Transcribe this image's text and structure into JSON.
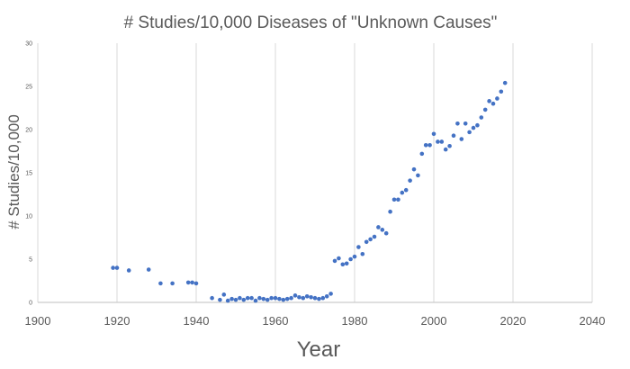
{
  "chart_data": {
    "type": "scatter",
    "title": "# Studies/10,000 Diseases of \"Unknown Causes\"",
    "xlabel": "Year",
    "ylabel": "# Studies/10,000",
    "xlim": [
      1900,
      2040
    ],
    "ylim": [
      0,
      30
    ],
    "x_ticks": [
      1900,
      1920,
      1940,
      1960,
      1980,
      2000,
      2020,
      2040
    ],
    "y_ticks": [
      0,
      5,
      10,
      15,
      20,
      25,
      30
    ],
    "grid": "vertical",
    "legend": "none",
    "marker_color": "#4472c4",
    "series": [
      {
        "points": [
          [
            1919,
            4.0
          ],
          [
            1920,
            4.0
          ],
          [
            1923,
            3.7
          ],
          [
            1928,
            3.8
          ],
          [
            1931,
            2.2
          ],
          [
            1934,
            2.2
          ],
          [
            1938,
            2.3
          ],
          [
            1939,
            2.3
          ],
          [
            1940,
            2.2
          ],
          [
            1944,
            0.5
          ],
          [
            1946,
            0.3
          ],
          [
            1947,
            0.9
          ],
          [
            1948,
            0.2
          ],
          [
            1949,
            0.4
          ],
          [
            1950,
            0.3
          ],
          [
            1951,
            0.5
          ],
          [
            1952,
            0.3
          ],
          [
            1953,
            0.5
          ],
          [
            1954,
            0.5
          ],
          [
            1955,
            0.2
          ],
          [
            1956,
            0.5
          ],
          [
            1957,
            0.4
          ],
          [
            1958,
            0.3
          ],
          [
            1959,
            0.5
          ],
          [
            1960,
            0.5
          ],
          [
            1961,
            0.4
          ],
          [
            1962,
            0.3
          ],
          [
            1963,
            0.4
          ],
          [
            1964,
            0.5
          ],
          [
            1965,
            0.8
          ],
          [
            1966,
            0.6
          ],
          [
            1967,
            0.5
          ],
          [
            1968,
            0.7
          ],
          [
            1969,
            0.6
          ],
          [
            1970,
            0.5
          ],
          [
            1971,
            0.4
          ],
          [
            1972,
            0.5
          ],
          [
            1973,
            0.7
          ],
          [
            1974,
            1.0
          ],
          [
            1975,
            4.8
          ],
          [
            1976,
            5.1
          ],
          [
            1977,
            4.4
          ],
          [
            1978,
            4.5
          ],
          [
            1979,
            5.0
          ],
          [
            1980,
            5.3
          ],
          [
            1981,
            6.4
          ],
          [
            1982,
            5.6
          ],
          [
            1983,
            7.0
          ],
          [
            1984,
            7.3
          ],
          [
            1985,
            7.6
          ],
          [
            1986,
            8.7
          ],
          [
            1987,
            8.4
          ],
          [
            1988,
            8.0
          ],
          [
            1989,
            10.5
          ],
          [
            1990,
            11.9
          ],
          [
            1991,
            11.9
          ],
          [
            1992,
            12.7
          ],
          [
            1993,
            13.0
          ],
          [
            1994,
            14.1
          ],
          [
            1995,
            15.4
          ],
          [
            1996,
            14.7
          ],
          [
            1997,
            17.2
          ],
          [
            1998,
            18.2
          ],
          [
            1999,
            18.2
          ],
          [
            2000,
            19.5
          ],
          [
            2001,
            18.6
          ],
          [
            2002,
            18.6
          ],
          [
            2003,
            17.7
          ],
          [
            2004,
            18.1
          ],
          [
            2005,
            19.3
          ],
          [
            2006,
            20.7
          ],
          [
            2007,
            18.9
          ],
          [
            2008,
            20.7
          ],
          [
            2009,
            19.7
          ],
          [
            2010,
            20.2
          ],
          [
            2011,
            20.5
          ],
          [
            2012,
            21.4
          ],
          [
            2013,
            22.3
          ],
          [
            2014,
            23.3
          ],
          [
            2015,
            23.0
          ],
          [
            2016,
            23.6
          ],
          [
            2017,
            24.4
          ],
          [
            2018,
            25.4
          ]
        ]
      }
    ]
  }
}
